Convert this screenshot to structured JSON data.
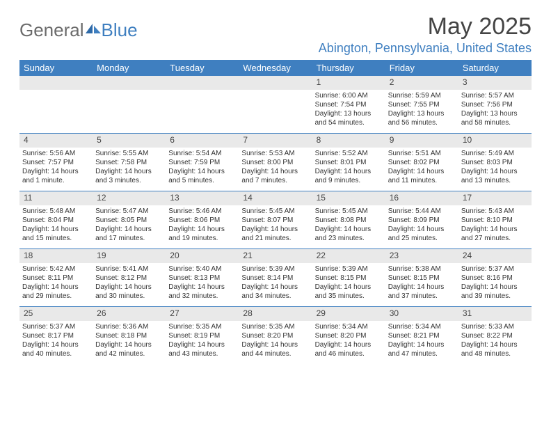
{
  "logo": {
    "general": "General",
    "blue": "Blue"
  },
  "title": "May 2025",
  "location": "Abington, Pennsylvania, United States",
  "day_names": [
    "Sunday",
    "Monday",
    "Tuesday",
    "Wednesday",
    "Thursday",
    "Friday",
    "Saturday"
  ],
  "colors": {
    "header_bg": "#3f7fc0",
    "header_text": "#ffffff",
    "date_row_bg": "#e9e9e9",
    "body_text": "#333333",
    "location_text": "#3f7fc0",
    "week_border": "#3f7fc0"
  },
  "weeks": [
    [
      null,
      null,
      null,
      null,
      {
        "d": "1",
        "sr": "Sunrise: 6:00 AM",
        "ss": "Sunset: 7:54 PM",
        "dl1": "Daylight: 13 hours",
        "dl2": "and 54 minutes."
      },
      {
        "d": "2",
        "sr": "Sunrise: 5:59 AM",
        "ss": "Sunset: 7:55 PM",
        "dl1": "Daylight: 13 hours",
        "dl2": "and 56 minutes."
      },
      {
        "d": "3",
        "sr": "Sunrise: 5:57 AM",
        "ss": "Sunset: 7:56 PM",
        "dl1": "Daylight: 13 hours",
        "dl2": "and 58 minutes."
      }
    ],
    [
      {
        "d": "4",
        "sr": "Sunrise: 5:56 AM",
        "ss": "Sunset: 7:57 PM",
        "dl1": "Daylight: 14 hours",
        "dl2": "and 1 minute."
      },
      {
        "d": "5",
        "sr": "Sunrise: 5:55 AM",
        "ss": "Sunset: 7:58 PM",
        "dl1": "Daylight: 14 hours",
        "dl2": "and 3 minutes."
      },
      {
        "d": "6",
        "sr": "Sunrise: 5:54 AM",
        "ss": "Sunset: 7:59 PM",
        "dl1": "Daylight: 14 hours",
        "dl2": "and 5 minutes."
      },
      {
        "d": "7",
        "sr": "Sunrise: 5:53 AM",
        "ss": "Sunset: 8:00 PM",
        "dl1": "Daylight: 14 hours",
        "dl2": "and 7 minutes."
      },
      {
        "d": "8",
        "sr": "Sunrise: 5:52 AM",
        "ss": "Sunset: 8:01 PM",
        "dl1": "Daylight: 14 hours",
        "dl2": "and 9 minutes."
      },
      {
        "d": "9",
        "sr": "Sunrise: 5:51 AM",
        "ss": "Sunset: 8:02 PM",
        "dl1": "Daylight: 14 hours",
        "dl2": "and 11 minutes."
      },
      {
        "d": "10",
        "sr": "Sunrise: 5:49 AM",
        "ss": "Sunset: 8:03 PM",
        "dl1": "Daylight: 14 hours",
        "dl2": "and 13 minutes."
      }
    ],
    [
      {
        "d": "11",
        "sr": "Sunrise: 5:48 AM",
        "ss": "Sunset: 8:04 PM",
        "dl1": "Daylight: 14 hours",
        "dl2": "and 15 minutes."
      },
      {
        "d": "12",
        "sr": "Sunrise: 5:47 AM",
        "ss": "Sunset: 8:05 PM",
        "dl1": "Daylight: 14 hours",
        "dl2": "and 17 minutes."
      },
      {
        "d": "13",
        "sr": "Sunrise: 5:46 AM",
        "ss": "Sunset: 8:06 PM",
        "dl1": "Daylight: 14 hours",
        "dl2": "and 19 minutes."
      },
      {
        "d": "14",
        "sr": "Sunrise: 5:45 AM",
        "ss": "Sunset: 8:07 PM",
        "dl1": "Daylight: 14 hours",
        "dl2": "and 21 minutes."
      },
      {
        "d": "15",
        "sr": "Sunrise: 5:45 AM",
        "ss": "Sunset: 8:08 PM",
        "dl1": "Daylight: 14 hours",
        "dl2": "and 23 minutes."
      },
      {
        "d": "16",
        "sr": "Sunrise: 5:44 AM",
        "ss": "Sunset: 8:09 PM",
        "dl1": "Daylight: 14 hours",
        "dl2": "and 25 minutes."
      },
      {
        "d": "17",
        "sr": "Sunrise: 5:43 AM",
        "ss": "Sunset: 8:10 PM",
        "dl1": "Daylight: 14 hours",
        "dl2": "and 27 minutes."
      }
    ],
    [
      {
        "d": "18",
        "sr": "Sunrise: 5:42 AM",
        "ss": "Sunset: 8:11 PM",
        "dl1": "Daylight: 14 hours",
        "dl2": "and 29 minutes."
      },
      {
        "d": "19",
        "sr": "Sunrise: 5:41 AM",
        "ss": "Sunset: 8:12 PM",
        "dl1": "Daylight: 14 hours",
        "dl2": "and 30 minutes."
      },
      {
        "d": "20",
        "sr": "Sunrise: 5:40 AM",
        "ss": "Sunset: 8:13 PM",
        "dl1": "Daylight: 14 hours",
        "dl2": "and 32 minutes."
      },
      {
        "d": "21",
        "sr": "Sunrise: 5:39 AM",
        "ss": "Sunset: 8:14 PM",
        "dl1": "Daylight: 14 hours",
        "dl2": "and 34 minutes."
      },
      {
        "d": "22",
        "sr": "Sunrise: 5:39 AM",
        "ss": "Sunset: 8:15 PM",
        "dl1": "Daylight: 14 hours",
        "dl2": "and 35 minutes."
      },
      {
        "d": "23",
        "sr": "Sunrise: 5:38 AM",
        "ss": "Sunset: 8:15 PM",
        "dl1": "Daylight: 14 hours",
        "dl2": "and 37 minutes."
      },
      {
        "d": "24",
        "sr": "Sunrise: 5:37 AM",
        "ss": "Sunset: 8:16 PM",
        "dl1": "Daylight: 14 hours",
        "dl2": "and 39 minutes."
      }
    ],
    [
      {
        "d": "25",
        "sr": "Sunrise: 5:37 AM",
        "ss": "Sunset: 8:17 PM",
        "dl1": "Daylight: 14 hours",
        "dl2": "and 40 minutes."
      },
      {
        "d": "26",
        "sr": "Sunrise: 5:36 AM",
        "ss": "Sunset: 8:18 PM",
        "dl1": "Daylight: 14 hours",
        "dl2": "and 42 minutes."
      },
      {
        "d": "27",
        "sr": "Sunrise: 5:35 AM",
        "ss": "Sunset: 8:19 PM",
        "dl1": "Daylight: 14 hours",
        "dl2": "and 43 minutes."
      },
      {
        "d": "28",
        "sr": "Sunrise: 5:35 AM",
        "ss": "Sunset: 8:20 PM",
        "dl1": "Daylight: 14 hours",
        "dl2": "and 44 minutes."
      },
      {
        "d": "29",
        "sr": "Sunrise: 5:34 AM",
        "ss": "Sunset: 8:20 PM",
        "dl1": "Daylight: 14 hours",
        "dl2": "and 46 minutes."
      },
      {
        "d": "30",
        "sr": "Sunrise: 5:34 AM",
        "ss": "Sunset: 8:21 PM",
        "dl1": "Daylight: 14 hours",
        "dl2": "and 47 minutes."
      },
      {
        "d": "31",
        "sr": "Sunrise: 5:33 AM",
        "ss": "Sunset: 8:22 PM",
        "dl1": "Daylight: 14 hours",
        "dl2": "and 48 minutes."
      }
    ]
  ]
}
